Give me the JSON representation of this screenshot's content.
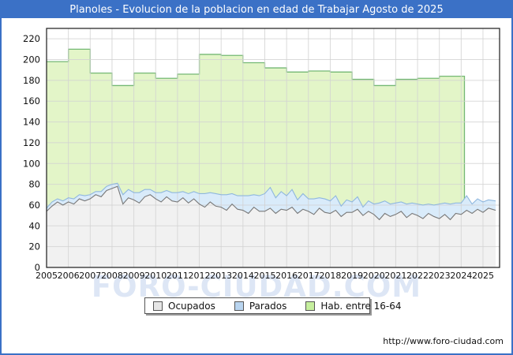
{
  "window": {
    "title": "Planoles - Evolucion de la poblacion en edad de Trabajar Agosto de 2025"
  },
  "watermark": "FORO-CIUDAD.COM",
  "footer": {
    "url": "http://www.foro-ciudad.com"
  },
  "colors": {
    "frame_blue": "#3b71c6",
    "plot_border": "#1a1a1a",
    "grid": "#d2d2d2",
    "tick_text": "#111111",
    "green_line": "#74b874",
    "green_fill": "#e3f5c8",
    "blue_line": "#8fb7de",
    "blue_fill": "#d9ebfa",
    "gray_line": "#787878",
    "gray_fill": "#f1f1f1"
  },
  "legend": {
    "items": [
      {
        "label": "Ocupados",
        "swatch": "#e6e6e6"
      },
      {
        "label": "Parados",
        "swatch": "#b9d5f0"
      },
      {
        "label": "Hab. entre 16-64",
        "swatch": "#c6ef9e"
      }
    ]
  },
  "chart_data": {
    "type": "area",
    "title": "Planoles - Evolucion de la poblacion en edad de Trabajar Agosto de 2025",
    "xlabel": "",
    "ylabel": "",
    "grid": true,
    "legend_position": "bottom",
    "xlim": [
      2005,
      2025.76
    ],
    "ylim": [
      0,
      230
    ],
    "x_ticks": [
      2005,
      2006,
      2007,
      2008,
      2009,
      2010,
      2011,
      2012,
      2013,
      2014,
      2015,
      2016,
      2017,
      2018,
      2019,
      2020,
      2021,
      2022,
      2023,
      2024,
      2025
    ],
    "y_ticks": [
      0,
      20,
      40,
      60,
      80,
      100,
      120,
      140,
      160,
      180,
      200,
      220
    ],
    "series": [
      {
        "name": "Hab. entre 16-64",
        "type": "step-area",
        "years": [
          2005,
          2006,
          2007,
          2008,
          2009,
          2010,
          2011,
          2012,
          2013,
          2014,
          2015,
          2016,
          2017,
          2018,
          2019,
          2020,
          2021,
          2022,
          2023
        ],
        "values": [
          198,
          210,
          187,
          175,
          187,
          182,
          186,
          205,
          204,
          197,
          192,
          188,
          189,
          188,
          181,
          175,
          181,
          182,
          184
        ],
        "end_x": 2024.15
      },
      {
        "name": "Ocupados",
        "type": "area",
        "x": [
          2005,
          2005.25,
          2005.5,
          2005.75,
          2006,
          2006.25,
          2006.5,
          2006.75,
          2007,
          2007.25,
          2007.5,
          2007.75,
          2008,
          2008.25,
          2008.5,
          2008.75,
          2009,
          2009.25,
          2009.5,
          2009.75,
          2010,
          2010.25,
          2010.5,
          2010.75,
          2011,
          2011.25,
          2011.5,
          2011.75,
          2012,
          2012.25,
          2012.5,
          2012.75,
          2013,
          2013.25,
          2013.5,
          2013.75,
          2014,
          2014.25,
          2014.5,
          2014.75,
          2015,
          2015.25,
          2015.5,
          2015.75,
          2016,
          2016.25,
          2016.5,
          2016.75,
          2017,
          2017.25,
          2017.5,
          2017.75,
          2018,
          2018.25,
          2018.5,
          2018.75,
          2019,
          2019.25,
          2019.5,
          2019.75,
          2020,
          2020.25,
          2020.5,
          2020.75,
          2021,
          2021.25,
          2021.5,
          2021.75,
          2022,
          2022.25,
          2022.5,
          2022.75,
          2023,
          2023.25,
          2023.5,
          2023.75,
          2024,
          2024.25,
          2024.5,
          2024.75,
          2025,
          2025.25,
          2025.58
        ],
        "values": [
          54,
          59,
          63,
          60,
          63,
          61,
          66,
          64,
          66,
          70,
          68,
          74,
          76,
          78,
          61,
          67,
          65,
          62,
          68,
          70,
          66,
          63,
          68,
          64,
          63,
          67,
          62,
          66,
          61,
          58,
          63,
          59,
          58,
          55,
          61,
          56,
          55,
          52,
          58,
          54,
          54,
          57,
          52,
          56,
          55,
          58,
          52,
          56,
          54,
          51,
          57,
          53,
          52,
          55,
          49,
          53,
          53,
          56,
          50,
          54,
          51,
          46,
          52,
          49,
          51,
          54,
          48,
          52,
          50,
          47,
          52,
          49,
          47,
          51,
          46,
          52,
          51,
          55,
          52,
          56,
          53,
          57,
          55
        ]
      },
      {
        "name": "Parados",
        "type": "stacked-area",
        "stack_on": "Ocupados",
        "x": [
          2005,
          2005.25,
          2005.5,
          2005.75,
          2006,
          2006.25,
          2006.5,
          2006.75,
          2007,
          2007.25,
          2007.5,
          2007.75,
          2008,
          2008.25,
          2008.5,
          2008.75,
          2009,
          2009.25,
          2009.5,
          2009.75,
          2010,
          2010.25,
          2010.5,
          2010.75,
          2011,
          2011.25,
          2011.5,
          2011.75,
          2012,
          2012.25,
          2012.5,
          2012.75,
          2013,
          2013.25,
          2013.5,
          2013.75,
          2014,
          2014.25,
          2014.5,
          2014.75,
          2015,
          2015.25,
          2015.5,
          2015.75,
          2016,
          2016.25,
          2016.5,
          2016.75,
          2017,
          2017.25,
          2017.5,
          2017.75,
          2018,
          2018.25,
          2018.5,
          2018.75,
          2019,
          2019.25,
          2019.5,
          2019.75,
          2020,
          2020.25,
          2020.5,
          2020.75,
          2021,
          2021.25,
          2021.5,
          2021.75,
          2022,
          2022.25,
          2022.5,
          2022.75,
          2023,
          2023.25,
          2023.5,
          2023.75,
          2024,
          2024.25,
          2024.5,
          2024.75,
          2025,
          2025.25,
          2025.58
        ],
        "values": [
          3,
          4,
          3,
          4,
          4,
          5,
          4,
          5,
          4,
          3,
          5,
          4,
          4,
          3,
          9,
          8,
          7,
          10,
          7,
          5,
          6,
          9,
          6,
          8,
          9,
          6,
          9,
          7,
          10,
          13,
          9,
          12,
          12,
          15,
          10,
          13,
          14,
          17,
          12,
          15,
          17,
          20,
          15,
          17,
          14,
          17,
          13,
          15,
          12,
          15,
          10,
          13,
          12,
          14,
          10,
          12,
          10,
          12,
          8,
          10,
          10,
          16,
          12,
          12,
          11,
          9,
          13,
          10,
          11,
          13,
          9,
          11,
          14,
          11,
          15,
          10,
          11,
          14,
          9,
          10,
          10,
          8,
          9
        ]
      }
    ]
  }
}
